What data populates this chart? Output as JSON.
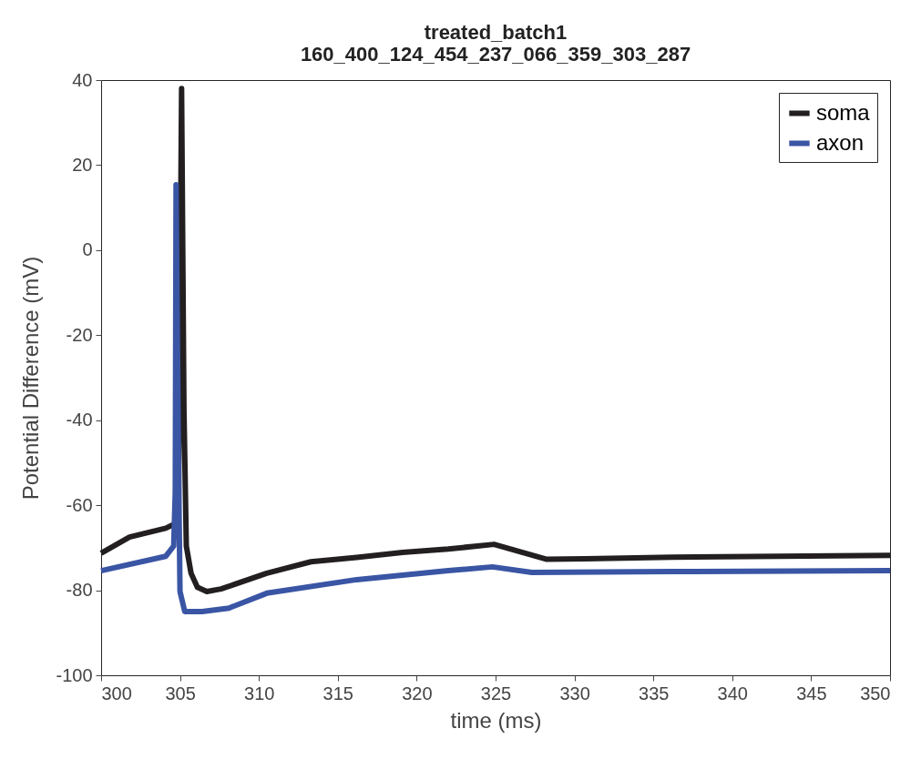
{
  "chart_data": {
    "type": "line",
    "title": "treated_batch1\n160_400_124_454_237_066_359_303_287",
    "xlabel": "time (ms)",
    "ylabel": "Potential Difference (mV)",
    "xlim": [
      300,
      350
    ],
    "xticks": [
      300,
      305,
      310,
      315,
      320,
      325,
      330,
      335,
      340,
      345,
      350
    ],
    "ylim": [
      -100,
      40
    ],
    "yticks": [
      -100,
      -80,
      -60,
      -40,
      -20,
      0,
      20,
      40
    ],
    "grid": false,
    "legend": "top right",
    "line_style": "solid",
    "marker": "none",
    "series": [
      {
        "name": "soma",
        "color": "#231f20",
        "x": [
          300,
          301.8,
          304.1,
          304.9,
          305.1,
          305.25,
          305.4,
          305.7,
          306.1,
          306.7,
          307.6,
          310.5,
          313.3,
          316.2,
          319.1,
          322,
          324.9,
          328.2,
          330.7,
          336.2,
          350
        ],
        "values": [
          -71.3,
          -67.5,
          -65.4,
          -64,
          38,
          -37.5,
          -69.6,
          -76,
          -79.3,
          -80.3,
          -79.7,
          -76,
          -73.3,
          -72.3,
          -71.1,
          -70.3,
          -69.2,
          -72.7,
          -72.6,
          -72.2,
          -71.8
        ]
      },
      {
        "name": "axon",
        "color": "#3a55a4",
        "x": [
          300,
          304.1,
          304.6,
          304.7,
          304.75,
          304.9,
          305,
          305.3,
          306.4,
          308.1,
          310.5,
          316.2,
          322,
          324.8,
          327.3,
          336.2,
          350
        ],
        "values": [
          -75.4,
          -72,
          -69.6,
          -56.8,
          15.4,
          -48,
          -80.3,
          -85,
          -85,
          -84.2,
          -80.7,
          -77.5,
          -75.4,
          -74.5,
          -75.8,
          -75.6,
          -75.4
        ]
      }
    ]
  }
}
